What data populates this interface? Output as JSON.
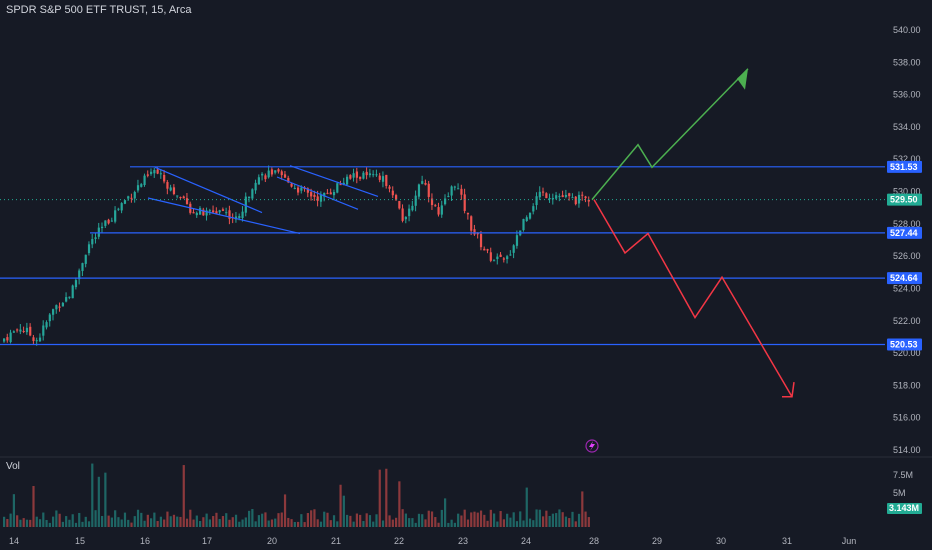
{
  "header": {
    "title": "SPDR S&P 500 ETF TRUST, 15, Arca"
  },
  "volume_panel": {
    "label": "Vol",
    "ticks": [
      "7.5M",
      "5M"
    ],
    "current": "3.143M"
  },
  "price_axis": {
    "ticks": [
      "540.00",
      "538.00",
      "536.00",
      "534.00",
      "532.00",
      "530.00",
      "528.00",
      "526.00",
      "524.00",
      "522.00",
      "520.00",
      "518.00",
      "516.00",
      "514.00"
    ]
  },
  "time_axis": {
    "ticks": [
      "14",
      "15",
      "16",
      "17",
      "20",
      "21",
      "22",
      "23",
      "24",
      "28",
      "29",
      "30",
      "31",
      "Jun"
    ]
  },
  "levels": [
    {
      "label": "531.53",
      "value": 531.53
    },
    {
      "label": "527.44",
      "value": 527.44
    },
    {
      "label": "524.64",
      "value": 524.64
    },
    {
      "label": "520.53",
      "value": 520.53
    }
  ],
  "current_price": {
    "label": "529.50",
    "value": 529.5
  },
  "colors": {
    "up": "#26a69a",
    "down": "#ef5350",
    "level_line": "#2962ff",
    "level_badge": "#2962ff",
    "price_badge": "#22ab94",
    "bull_path": "#4caf50",
    "bear_path": "#f23645",
    "text": "#b2b5be"
  },
  "chart_data": {
    "type": "candlestick",
    "price_range": [
      513.8,
      541.3
    ],
    "volume_ticks": [
      "7.5M",
      "5M"
    ],
    "horizontal_levels": [
      531.53,
      527.44,
      524.64,
      520.53
    ],
    "current_price": 529.5,
    "close_path_approx": [
      {
        "date": "14",
        "close": 520.9
      },
      {
        "date": "14",
        "close": 521.6
      },
      {
        "date": "14",
        "close": 520.8
      },
      {
        "date": "15",
        "close": 522.8
      },
      {
        "date": "15",
        "close": 523.7
      },
      {
        "date": "15",
        "close": 526.6
      },
      {
        "date": "15",
        "close": 527.9
      },
      {
        "date": "15",
        "close": 529.2
      },
      {
        "date": "16",
        "close": 530.3
      },
      {
        "date": "16",
        "close": 531.3
      },
      {
        "date": "16",
        "close": 530.2
      },
      {
        "date": "17",
        "close": 529.0
      },
      {
        "date": "17",
        "close": 528.6
      },
      {
        "date": "17",
        "close": 528.9
      },
      {
        "date": "17",
        "close": 528.2
      },
      {
        "date": "20",
        "close": 530.8
      },
      {
        "date": "20",
        "close": 531.2
      },
      {
        "date": "20",
        "close": 530.6
      },
      {
        "date": "21",
        "close": 529.9
      },
      {
        "date": "21",
        "close": 529.6
      },
      {
        "date": "21",
        "close": 530.4
      },
      {
        "date": "22",
        "close": 531.0
      },
      {
        "date": "22",
        "close": 530.9
      },
      {
        "date": "22",
        "close": 530.6
      },
      {
        "date": "23",
        "close": 528.0
      },
      {
        "date": "23",
        "close": 530.9
      },
      {
        "date": "23",
        "close": 528.5
      },
      {
        "date": "23",
        "close": 530.6
      },
      {
        "date": "24",
        "close": 527.7
      },
      {
        "date": "24",
        "close": 526.0
      },
      {
        "date": "24",
        "close": 525.6
      },
      {
        "date": "24",
        "close": 528.0
      },
      {
        "date": "24",
        "close": 529.9
      },
      {
        "date": "24",
        "close": 529.8
      },
      {
        "date": "24",
        "close": 529.5
      },
      {
        "date": "28",
        "close": 529.5
      }
    ],
    "projection_bullish": [
      529.5,
      532.9,
      531.5,
      537.6
    ],
    "projection_bearish": [
      529.5,
      526.2,
      527.4,
      522.2,
      524.7,
      517.3
    ]
  }
}
